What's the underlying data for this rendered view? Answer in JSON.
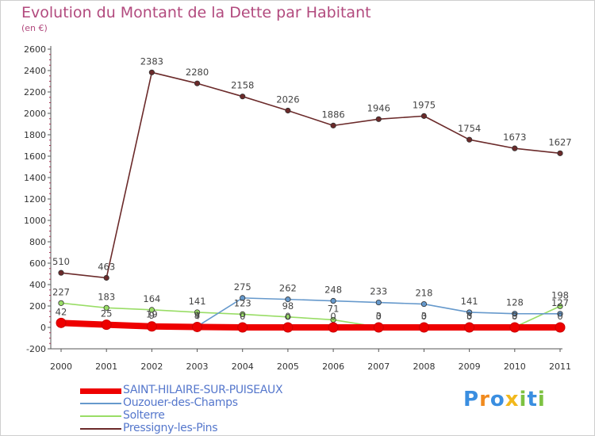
{
  "header": {
    "title": "Evolution du Montant de la Dette par Habitant",
    "subtitle": "(en €)"
  },
  "logo": {
    "text": "Proxiti",
    "letters": [
      {
        "ch": "P",
        "color": "#3a8ee0"
      },
      {
        "ch": "r",
        "color": "#f08a1e"
      },
      {
        "ch": "o",
        "color": "#3a8ee0"
      },
      {
        "ch": "x",
        "color": "#f2b81c"
      },
      {
        "ch": "i",
        "color": "#7dc242"
      },
      {
        "ch": "t",
        "color": "#3a8ee0"
      },
      {
        "ch": "i",
        "color": "#7dc242"
      }
    ]
  },
  "chart_data": {
    "type": "line",
    "title": "Evolution du Montant de la Dette par Habitant",
    "subtitle": "(en €)",
    "xlabel": "",
    "ylabel": "",
    "x": [
      "2000",
      "2001",
      "2002",
      "2003",
      "2004",
      "2005",
      "2006",
      "2007",
      "2008",
      "2009",
      "2010",
      "2011"
    ],
    "ylim": [
      -200,
      2600
    ],
    "yticks": [
      -200,
      0,
      200,
      400,
      600,
      800,
      1000,
      1200,
      1400,
      1600,
      1800,
      2000,
      2200,
      2400,
      2600
    ],
    "grid": false,
    "legend_position": "bottom-left",
    "series": [
      {
        "name": "SAINT-HILAIRE-SUR-PUISEAUX",
        "color": "#ee0000",
        "values": [
          42,
          25,
          9,
          4,
          0,
          0,
          0,
          0,
          0,
          0,
          0,
          0
        ],
        "labels": [
          "42",
          "25",
          "9",
          "4",
          "0",
          "0",
          "0",
          "0",
          "0",
          "0",
          "0",
          "0"
        ]
      },
      {
        "name": "Ouzouer-des-Champs",
        "color": "#6699cc",
        "values": [
          52,
          33,
          19,
          9,
          275,
          262,
          248,
          233,
          218,
          141,
          128,
          127
        ],
        "labels": [
          "",
          "",
          "19",
          "9",
          "275",
          "262",
          "248",
          "233",
          "218",
          "141",
          "128",
          "127"
        ]
      },
      {
        "name": "Solterre",
        "color": "#99dd66",
        "values": [
          227,
          183,
          164,
          141,
          123,
          98,
          71,
          3,
          3,
          3,
          3,
          198
        ],
        "labels": [
          "227",
          "183",
          "164",
          "141",
          "123",
          "98",
          "71",
          "3",
          "3",
          "3",
          "3",
          "198"
        ]
      },
      {
        "name": "Pressigny-les-Pins",
        "color": "#6b2a2a",
        "values": [
          510,
          463,
          2383,
          2280,
          2158,
          2026,
          1886,
          1946,
          1975,
          1754,
          1673,
          1627
        ],
        "labels": [
          "510",
          "463",
          "2383",
          "2280",
          "2158",
          "2026",
          "1886",
          "1946",
          "1975",
          "1754",
          "1673",
          "1627"
        ]
      }
    ]
  }
}
